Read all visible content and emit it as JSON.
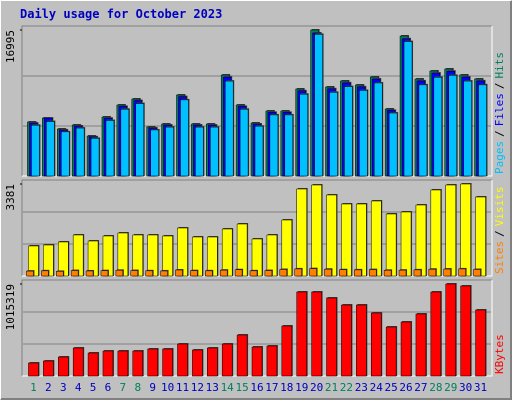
{
  "chart_data": [
    {
      "type": "bar",
      "title": "Daily usage for October 2023",
      "categories": [
        "1",
        "2",
        "3",
        "4",
        "5",
        "6",
        "7",
        "8",
        "9",
        "10",
        "11",
        "12",
        "13",
        "14",
        "15",
        "16",
        "17",
        "18",
        "19",
        "20",
        "21",
        "22",
        "23",
        "24",
        "25",
        "26",
        "27",
        "28",
        "29",
        "30",
        "31"
      ],
      "label_colors": [
        "#00805c",
        "#0000c0",
        "#0000c0",
        "#0000c0",
        "#0000c0",
        "#0000c0",
        "#00805c",
        "#00805c",
        "#0000c0",
        "#0000c0",
        "#0000c0",
        "#0000c0",
        "#0000c0",
        "#00805c",
        "#00805c",
        "#0000c0",
        "#0000c0",
        "#0000c0",
        "#0000c0",
        "#0000c0",
        "#00805c",
        "#00805c",
        "#0000c0",
        "#0000c0",
        "#0000c0",
        "#0000c0",
        "#0000c0",
        "#00805c",
        "#00805c",
        "#0000c0",
        "#0000c0"
      ],
      "legend_separator": "/",
      "series": [
        {
          "name": "Hits",
          "color": "#00805c",
          "values": [
            6286,
            6751,
            5471,
            5937,
            4656,
            6868,
            8265,
            8963,
            5704,
            6053,
            9429,
            6053,
            6053,
            11757,
            8265,
            6169,
            7566,
            7566,
            10127,
            16995,
            10360,
            11059,
            10593,
            11524,
            7799,
            16296,
            11291,
            12222,
            12455,
            11757,
            11291
          ]
        },
        {
          "name": "Files",
          "color": "#0000ff",
          "values": [
            6160,
            6740,
            5360,
            5820,
            4560,
            6730,
            8100,
            8780,
            5590,
            5930,
            9240,
            5930,
            5930,
            11520,
            8100,
            6050,
            7410,
            7410,
            9920,
            16650,
            10150,
            10840,
            10380,
            11290,
            7640,
            15970,
            11070,
            11980,
            12200,
            11520,
            11070
          ]
        },
        {
          "name": "Pages",
          "color": "#00c0ff",
          "values": [
            5910,
            6340,
            5140,
            5580,
            4380,
            6460,
            7770,
            8430,
            5360,
            5690,
            8860,
            5690,
            5690,
            11050,
            7770,
            5800,
            7110,
            7110,
            9520,
            16490,
            9740,
            10400,
            9960,
            10830,
            7330,
            15650,
            10610,
            11490,
            11710,
            11050,
            10610
          ]
        }
      ],
      "ylim": [
        0,
        16995
      ],
      "yticks": [
        16995
      ]
    },
    {
      "type": "bar",
      "categories": [
        "1",
        "2",
        "3",
        "4",
        "5",
        "6",
        "7",
        "8",
        "9",
        "10",
        "11",
        "12",
        "13",
        "14",
        "15",
        "16",
        "17",
        "18",
        "19",
        "20",
        "21",
        "22",
        "23",
        "24",
        "25",
        "26",
        "27",
        "28",
        "29",
        "30",
        "31"
      ],
      "legend_separator": "/",
      "series": [
        {
          "name": "Visits",
          "color": "#ffff00",
          "values": [
            1103,
            1139,
            1250,
            1507,
            1286,
            1470,
            1580,
            1507,
            1507,
            1470,
            1764,
            1433,
            1433,
            1727,
            1911,
            1360,
            1507,
            2058,
            3197,
            3344,
            2977,
            2646,
            2646,
            2756,
            2279,
            2352,
            2609,
            3161,
            3344,
            3381,
            2903
          ]
        },
        {
          "name": "Sites",
          "color": "#ff8000",
          "values": [
            180,
            190,
            170,
            200,
            185,
            195,
            210,
            200,
            190,
            185,
            220,
            195,
            190,
            215,
            230,
            190,
            200,
            240,
            260,
            270,
            250,
            230,
            225,
            235,
            210,
            215,
            225,
            250,
            255,
            260,
            240
          ]
        }
      ],
      "ylim": [
        0,
        3381
      ],
      "yticks": [
        3381
      ]
    },
    {
      "type": "bar",
      "categories": [
        "1",
        "2",
        "3",
        "4",
        "5",
        "6",
        "7",
        "8",
        "9",
        "10",
        "11",
        "12",
        "13",
        "14",
        "15",
        "16",
        "17",
        "18",
        "19",
        "20",
        "21",
        "22",
        "23",
        "24",
        "25",
        "26",
        "27",
        "28",
        "29",
        "30",
        "31"
      ],
      "series": [
        {
          "name": "KBytes",
          "color": "#ff0000",
          "values": [
            143468,
            165540,
            209684,
            309008,
            253828,
            275900,
            275900,
            275900,
            297972,
            297972,
            353152,
            286936,
            309008,
            353152,
            452476,
            320044,
            331080,
            551800,
            927024,
            927024,
            860808,
            783556,
            783556,
            695268,
            540764,
            595944,
            684232,
            927024,
            1015319,
            993240,
            728376
          ]
        }
      ],
      "ylim": [
        0,
        1015319
      ],
      "yticks": [
        1015319
      ]
    }
  ]
}
